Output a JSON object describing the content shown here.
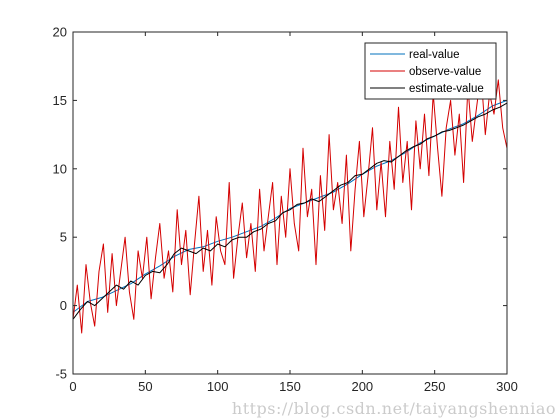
{
  "chart_data": {
    "type": "line",
    "title": "",
    "xlabel": "",
    "ylabel": "",
    "xlim": [
      0,
      300
    ],
    "ylim": [
      -5,
      20
    ],
    "xticks": [
      0,
      50,
      100,
      150,
      200,
      250,
      300
    ],
    "yticks": [
      -5,
      0,
      5,
      10,
      15,
      20
    ],
    "grid": false,
    "legend_position": "top-right",
    "series": [
      {
        "name": "real-value",
        "color": "#0072BD",
        "x": [
          0,
          10,
          20,
          30,
          40,
          50,
          60,
          70,
          80,
          90,
          100,
          110,
          120,
          130,
          140,
          150,
          160,
          170,
          180,
          190,
          200,
          210,
          220,
          230,
          240,
          250,
          260,
          270,
          280,
          290,
          300
        ],
        "values": [
          -0.5,
          0.3,
          0.6,
          1.1,
          1.6,
          2.3,
          2.9,
          3.6,
          4.1,
          4.3,
          4.7,
          5.0,
          5.4,
          5.8,
          6.4,
          7.1,
          7.5,
          7.9,
          8.3,
          8.9,
          9.6,
          10.2,
          10.6,
          11.2,
          11.9,
          12.4,
          12.9,
          13.3,
          13.9,
          14.6,
          15.0
        ]
      },
      {
        "name": "observe-value",
        "color": "#D40000",
        "x": [
          0,
          3,
          6,
          9,
          12,
          15,
          18,
          21,
          24,
          27,
          30,
          33,
          36,
          39,
          42,
          45,
          48,
          51,
          54,
          57,
          60,
          63,
          66,
          69,
          72,
          75,
          78,
          81,
          84,
          87,
          90,
          93,
          96,
          99,
          102,
          105,
          108,
          111,
          114,
          117,
          120,
          123,
          126,
          129,
          132,
          135,
          138,
          141,
          144,
          147,
          150,
          153,
          156,
          159,
          162,
          165,
          168,
          171,
          174,
          177,
          180,
          183,
          186,
          189,
          192,
          195,
          198,
          201,
          204,
          207,
          210,
          213,
          216,
          219,
          222,
          225,
          228,
          231,
          234,
          237,
          240,
          243,
          246,
          249,
          252,
          255,
          258,
          261,
          264,
          267,
          270,
          273,
          276,
          279,
          282,
          285,
          288,
          291,
          294,
          297,
          300
        ],
        "values": [
          -1.0,
          1.5,
          -2.0,
          3.0,
          0.2,
          -1.5,
          2.5,
          4.5,
          -0.5,
          3.8,
          0.0,
          2.5,
          5.0,
          1.0,
          -1.0,
          4.0,
          2.0,
          5.0,
          0.5,
          3.5,
          6.0,
          2.0,
          4.0,
          1.0,
          7.0,
          3.0,
          5.5,
          0.8,
          4.5,
          8.0,
          2.5,
          5.5,
          1.5,
          6.5,
          4.0,
          3.0,
          9.0,
          2.0,
          5.0,
          7.5,
          3.5,
          6.0,
          2.5,
          8.5,
          4.0,
          6.5,
          9.0,
          3.0,
          8.0,
          5.0,
          10.0,
          6.0,
          4.0,
          11.5,
          6.5,
          8.5,
          3.0,
          9.5,
          5.5,
          12.5,
          7.0,
          9.0,
          6.0,
          11.0,
          4.0,
          8.5,
          12.0,
          6.5,
          9.5,
          13.0,
          7.0,
          10.5,
          6.5,
          12.0,
          8.5,
          14.5,
          9.0,
          12.0,
          7.0,
          13.5,
          10.0,
          14.0,
          9.5,
          15.5,
          11.5,
          8.0,
          13.0,
          15.0,
          11.0,
          14.0,
          9.0,
          16.0,
          12.0,
          14.5,
          17.0,
          12.5,
          15.5,
          14.0,
          16.5,
          13.0,
          11.5
        ]
      },
      {
        "name": "estimate-value",
        "color": "#000000",
        "x": [
          0,
          5,
          10,
          15,
          20,
          25,
          30,
          35,
          40,
          45,
          50,
          55,
          60,
          65,
          70,
          75,
          80,
          85,
          90,
          95,
          100,
          105,
          110,
          115,
          120,
          125,
          130,
          135,
          140,
          145,
          150,
          155,
          160,
          165,
          170,
          175,
          180,
          185,
          190,
          195,
          200,
          205,
          210,
          215,
          220,
          225,
          230,
          235,
          240,
          245,
          250,
          255,
          260,
          265,
          270,
          275,
          280,
          285,
          290,
          295,
          300
        ],
        "values": [
          -1.0,
          -0.3,
          0.3,
          0.0,
          0.5,
          1.0,
          1.5,
          1.2,
          1.8,
          1.5,
          2.2,
          2.5,
          2.4,
          3.0,
          3.8,
          4.2,
          4.0,
          3.8,
          4.2,
          4.0,
          4.5,
          4.3,
          4.8,
          5.0,
          5.0,
          5.4,
          5.6,
          6.0,
          6.2,
          6.8,
          7.0,
          7.4,
          7.5,
          7.8,
          7.6,
          8.0,
          8.4,
          8.8,
          9.0,
          9.5,
          9.6,
          10.0,
          10.4,
          10.6,
          10.5,
          10.9,
          11.3,
          11.6,
          11.8,
          12.2,
          12.4,
          12.7,
          12.8,
          13.0,
          13.2,
          13.5,
          13.8,
          14.0,
          14.3,
          14.5,
          14.8
        ]
      }
    ]
  },
  "watermark": "https://blog.csdn.net/taiyangshenniao"
}
